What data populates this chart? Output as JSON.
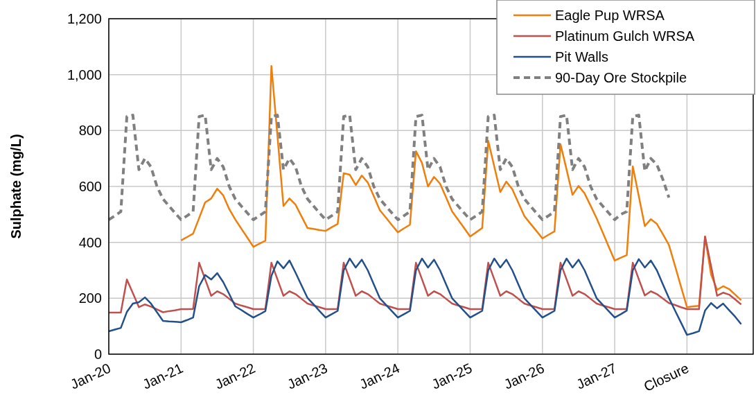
{
  "chart_data": {
    "type": "line",
    "ylabel": "Sulphate (mg/L)",
    "categories": [
      "Jan-20",
      null,
      null,
      null,
      null,
      null,
      null,
      null,
      null,
      null,
      null,
      null,
      "Jan-21",
      null,
      null,
      null,
      null,
      null,
      null,
      null,
      null,
      null,
      null,
      null,
      "Jan-22",
      null,
      null,
      null,
      null,
      null,
      null,
      null,
      null,
      null,
      null,
      null,
      "Jan-23",
      null,
      null,
      null,
      null,
      null,
      null,
      null,
      null,
      null,
      null,
      null,
      "Jan-24",
      null,
      null,
      null,
      null,
      null,
      null,
      null,
      null,
      null,
      null,
      null,
      "Jan-25",
      null,
      null,
      null,
      null,
      null,
      null,
      null,
      null,
      null,
      null,
      null,
      "Jan-26",
      null,
      null,
      null,
      null,
      null,
      null,
      null,
      null,
      null,
      null,
      null,
      "Jan-27",
      null,
      null,
      null,
      null,
      null,
      null,
      null,
      null,
      null,
      null,
      null,
      "Closure",
      null,
      null,
      null,
      null,
      null,
      null,
      null,
      null,
      null,
      null,
      null
    ],
    "ylim": [
      0,
      1200
    ],
    "yticks": [
      0,
      200,
      400,
      600,
      800,
      {
        "value": 1000,
        "label": "1,000"
      },
      {
        "value": 1200,
        "label": "1,200"
      }
    ],
    "grid": true,
    "legend": "top right",
    "marker": "none",
    "series": [
      {
        "name": "Eagle Pup WRSA",
        "color": "#f07e0a",
        "line_style": "solid",
        "values": [
          null,
          null,
          null,
          null,
          null,
          null,
          null,
          null,
          null,
          null,
          null,
          null,
          407,
          419,
          431,
          487,
          543,
          557,
          592,
          568,
          519,
          482,
          449,
          417,
          384,
          395,
          406,
          1031,
          781,
          530,
          557,
          535,
          493,
          451,
          448,
          444,
          441,
          454,
          466,
          647,
          642,
          605,
          639,
          614,
          565,
          515,
          489,
          462,
          436,
          450,
          463,
          726,
          684,
          600,
          634,
          610,
          561,
          511,
          481,
          451,
          421,
          436,
          451,
          763,
          672,
          580,
          617,
          590,
          542,
          494,
          467,
          441,
          414,
          427,
          439,
          751,
          661,
          570,
          602,
          575,
          531,
          486,
          436,
          385,
          335,
          345,
          354,
          672,
          565,
          458,
          483,
          466,
          429,
          391,
          317,
          242,
          168,
          171,
          173,
          420,
          285,
          230,
          243,
          233,
          213,
          193,
          null,
          null
        ]
      },
      {
        "name": "Platinum Gulch WRSA",
        "color": "#c0504d",
        "line_style": "solid",
        "values": [
          149,
          149,
          149,
          267,
          218,
          168,
          178,
          170,
          160,
          150,
          154,
          157,
          161,
          161,
          162,
          327,
          268,
          209,
          225,
          215,
          198,
          181,
          174,
          168,
          161,
          161,
          162,
          327,
          268,
          209,
          225,
          215,
          198,
          181,
          174,
          168,
          161,
          161,
          162,
          327,
          268,
          209,
          225,
          215,
          198,
          181,
          174,
          168,
          161,
          161,
          162,
          327,
          268,
          209,
          225,
          215,
          198,
          181,
          174,
          168,
          161,
          161,
          162,
          327,
          268,
          209,
          225,
          215,
          198,
          181,
          174,
          168,
          161,
          161,
          162,
          327,
          268,
          209,
          225,
          215,
          198,
          181,
          174,
          168,
          161,
          161,
          162,
          327,
          268,
          210,
          225,
          215,
          199,
          183,
          176,
          168,
          161,
          161,
          161,
          421,
          315,
          209,
          220,
          213,
          196,
          178,
          null,
          null
        ]
      },
      {
        "name": "Pit Walls",
        "color": "#24508a",
        "line_style": "solid",
        "values": [
          82,
          88,
          94,
          151,
          181,
          186,
          203,
          181,
          150,
          119,
          117,
          116,
          114,
          122,
          131,
          243,
          283,
          267,
          290,
          258,
          215,
          171,
          158,
          144,
          131,
          142,
          154,
          280,
          332,
          307,
          335,
          292,
          246,
          201,
          178,
          154,
          131,
          143,
          155,
          300,
          342,
          310,
          338,
          300,
          250,
          200,
          177,
          154,
          131,
          143,
          155,
          300,
          342,
          310,
          338,
          300,
          250,
          200,
          177,
          154,
          131,
          143,
          155,
          300,
          342,
          310,
          338,
          300,
          250,
          200,
          177,
          154,
          131,
          143,
          155,
          300,
          342,
          310,
          338,
          300,
          250,
          200,
          177,
          154,
          131,
          143,
          156,
          300,
          340,
          310,
          335,
          300,
          250,
          201,
          157,
          113,
          69,
          75,
          82,
          156,
          183,
          164,
          181,
          157,
          134,
          107,
          null,
          null
        ]
      },
      {
        "name": "90-Day Ore Stockpile",
        "color": "#808080",
        "line_style": "dashed",
        "values": [
          481,
          495,
          510,
          850,
          855,
          660,
          700,
          670,
          600,
          555,
          530,
          505,
          481,
          495,
          510,
          850,
          855,
          660,
          700,
          670,
          600,
          555,
          530,
          505,
          481,
          495,
          510,
          850,
          855,
          660,
          700,
          670,
          600,
          555,
          530,
          505,
          481,
          495,
          510,
          850,
          855,
          660,
          700,
          670,
          600,
          555,
          530,
          505,
          481,
          495,
          510,
          850,
          855,
          660,
          700,
          670,
          600,
          555,
          530,
          505,
          481,
          495,
          510,
          850,
          855,
          660,
          700,
          670,
          600,
          555,
          530,
          505,
          481,
          495,
          510,
          850,
          855,
          660,
          700,
          670,
          600,
          555,
          530,
          505,
          481,
          500,
          510,
          850,
          855,
          655,
          700,
          678,
          625,
          560,
          null,
          null,
          null,
          null,
          null,
          null,
          null,
          null,
          null,
          null,
          null,
          null,
          null,
          null
        ]
      }
    ]
  }
}
